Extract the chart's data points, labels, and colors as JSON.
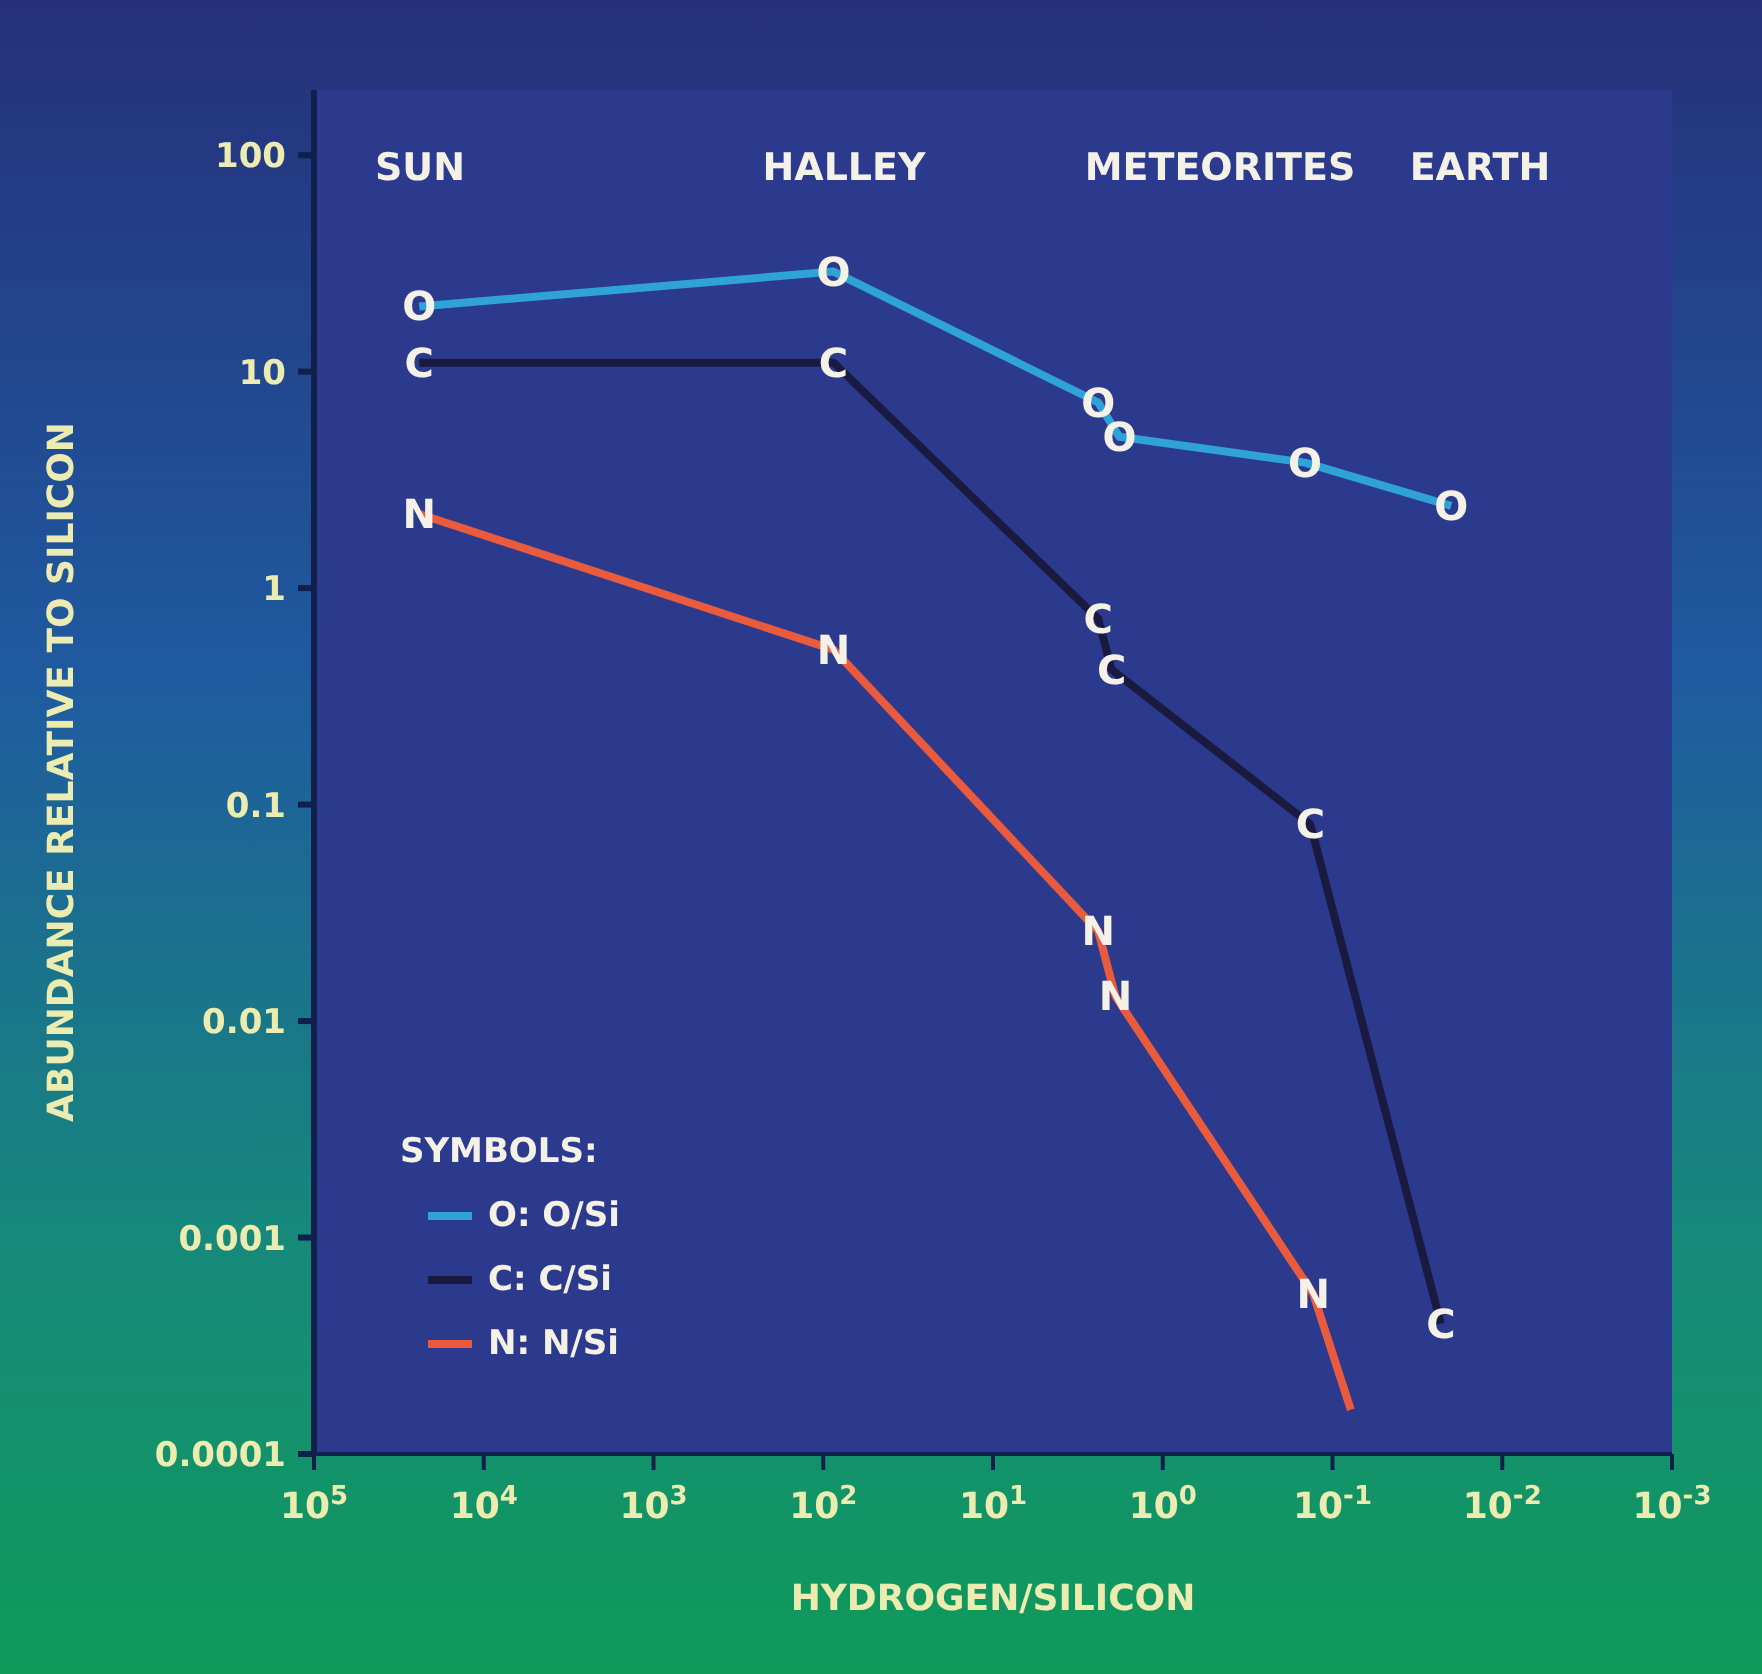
{
  "chart_data": {
    "type": "line",
    "xlabel": "HYDROGEN/SILICON",
    "ylabel": "ABUNDANCE RELATIVE TO SILICON",
    "log": "xy",
    "grid": false,
    "legend": "bottom left",
    "legend_title": "SYMBOLS:",
    "marker": "none",
    "xlim": [
      100000,
      0.001
    ],
    "ylim": [
      0.0001,
      200
    ],
    "xticks": [
      {
        "value": 100000,
        "label": "10$^{5}$"
      },
      {
        "value": 10000,
        "label": "10$^{4}$"
      },
      {
        "value": 1000,
        "label": "10$^{3}$"
      },
      {
        "value": 100,
        "label": "10$^{2}$"
      },
      {
        "value": 10,
        "label": "10$^{1}$"
      },
      {
        "value": 1,
        "label": "10$^{0}$"
      },
      {
        "value": 0.1,
        "label": "10$^{-1}$"
      },
      {
        "value": 0.01,
        "label": "10$^{-2}$"
      },
      {
        "value": 0.001,
        "label": "10$^{-3}$"
      }
    ],
    "yticks": [
      0.0001,
      0.001,
      0.01,
      0.1,
      1,
      10,
      100
    ],
    "annotations": [
      "SUN",
      "HALLEY",
      "METEORITES",
      "EARTH"
    ],
    "series": [
      {
        "name": "O: O/Si",
        "color": "#2fa3d8",
        "x": [
          24000,
          87,
          2.4,
          1.8,
          0.145,
          0.02
        ],
        "values": [
          20,
          29,
          7.2,
          5,
          3.8,
          2.4
        ],
        "value_labels": [
          "O",
          "O",
          "O",
          "O",
          "O",
          "O"
        ]
      },
      {
        "name": "C: C/Si",
        "color": "#1a1a40",
        "x": [
          24000,
          87,
          2.4,
          2,
          0.135,
          0.023
        ],
        "values": [
          11,
          11,
          0.72,
          0.42,
          0.081,
          0.0004
        ],
        "value_labels": [
          "C",
          "C",
          "C",
          "C",
          "C",
          "C"
        ]
      },
      {
        "name": "N: N/Si",
        "color": "#ea5a3c",
        "x": [
          24000,
          87,
          2.4,
          1.9,
          0.13,
          0.078
        ],
        "values": [
          2.2,
          0.52,
          0.026,
          0.013,
          0.00055,
          0.00016
        ],
        "value_labels": [
          "N",
          "N",
          "N",
          "N",
          "N",
          null
        ]
      }
    ]
  }
}
